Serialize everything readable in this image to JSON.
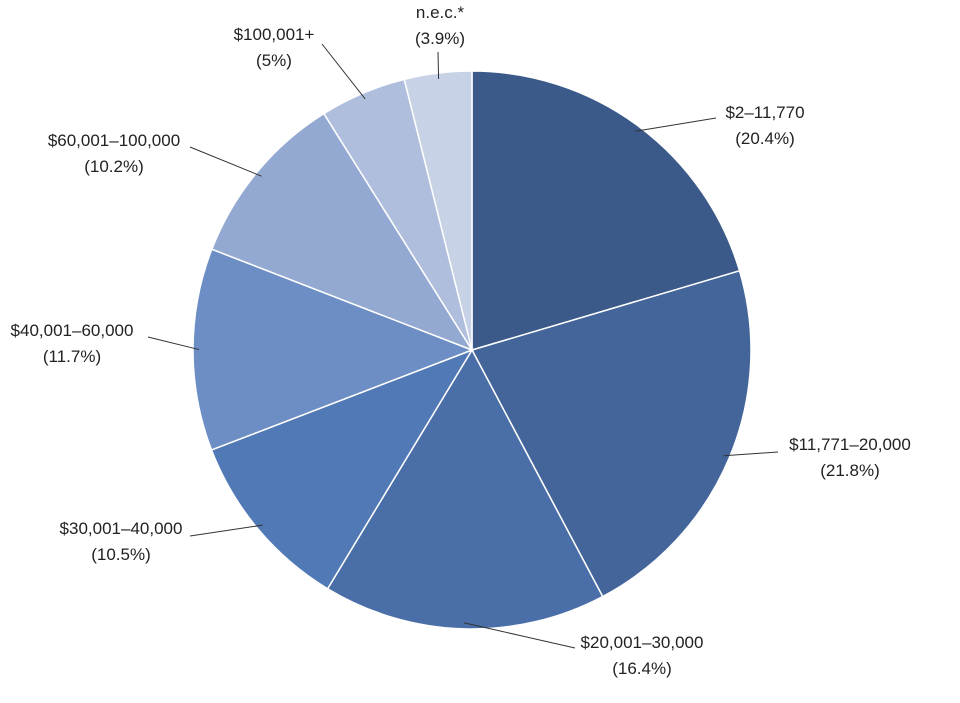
{
  "chart_data": {
    "type": "pie",
    "title": "",
    "start_angle_deg": 0,
    "direction": "clockwise",
    "slices": [
      {
        "label": "$2–11,770",
        "pct_label": "(20.4%)",
        "value": 20.4,
        "color": "#3b5a8a"
      },
      {
        "label": "$11,771–20,000",
        "pct_label": "(21.8%)",
        "value": 21.8,
        "color": "#44659a"
      },
      {
        "label": "$20,001–30,000",
        "pct_label": "(16.4%)",
        "value": 16.4,
        "color": "#4a6fa8"
      },
      {
        "label": "$30,001–40,000",
        "pct_label": "(10.5%)",
        "value": 10.5,
        "color": "#5179b6"
      },
      {
        "label": "$40,001–60,000",
        "pct_label": "(11.7%)",
        "value": 11.7,
        "color": "#6d8ec4"
      },
      {
        "label": "$60,001–100,000",
        "pct_label": "(10.2%)",
        "value": 10.2,
        "color": "#94a9d1"
      },
      {
        "label": "$100,001+",
        "pct_label": "(5%)",
        "value": 5.0,
        "color": "#afbedd"
      },
      {
        "label": "n.e.c.*",
        "pct_label": "(3.9%)",
        "value": 3.9,
        "color": "#c8d2e7"
      }
    ]
  }
}
